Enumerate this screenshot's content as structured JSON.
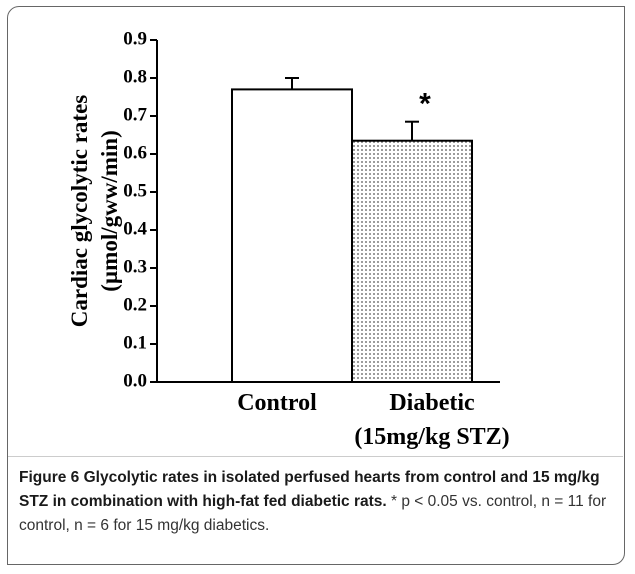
{
  "chart_data": {
    "type": "bar",
    "ylabel": "Cardiac glycolytic rates\n(µmol/gww/min)",
    "categories": [
      "Control",
      "Diabetic\n(15mg/kg STZ)"
    ],
    "values": [
      0.77,
      0.635
    ],
    "errors": [
      0.03,
      0.05
    ],
    "colors": [
      "#ffffff",
      "#555555"
    ],
    "annotations": [
      {
        "category": 1,
        "text": "*"
      }
    ],
    "ylim": [
      0,
      0.9
    ],
    "yticks": [
      {
        "value": 0,
        "label": "0.0"
      },
      0.1,
      0.2,
      0.3,
      0.4,
      0.5,
      0.6,
      0.7,
      0.8,
      0.9
    ]
  },
  "caption": {
    "label": "Figure 6 Glycolytic rates in isolated perfused hearts from control and 15 mg/kg STZ in combination with high-fat fed diabetic rats.",
    "text": " * p < 0.05 vs. control, n = 11 for control, n = 6 for 15 mg/kg diabetics."
  }
}
